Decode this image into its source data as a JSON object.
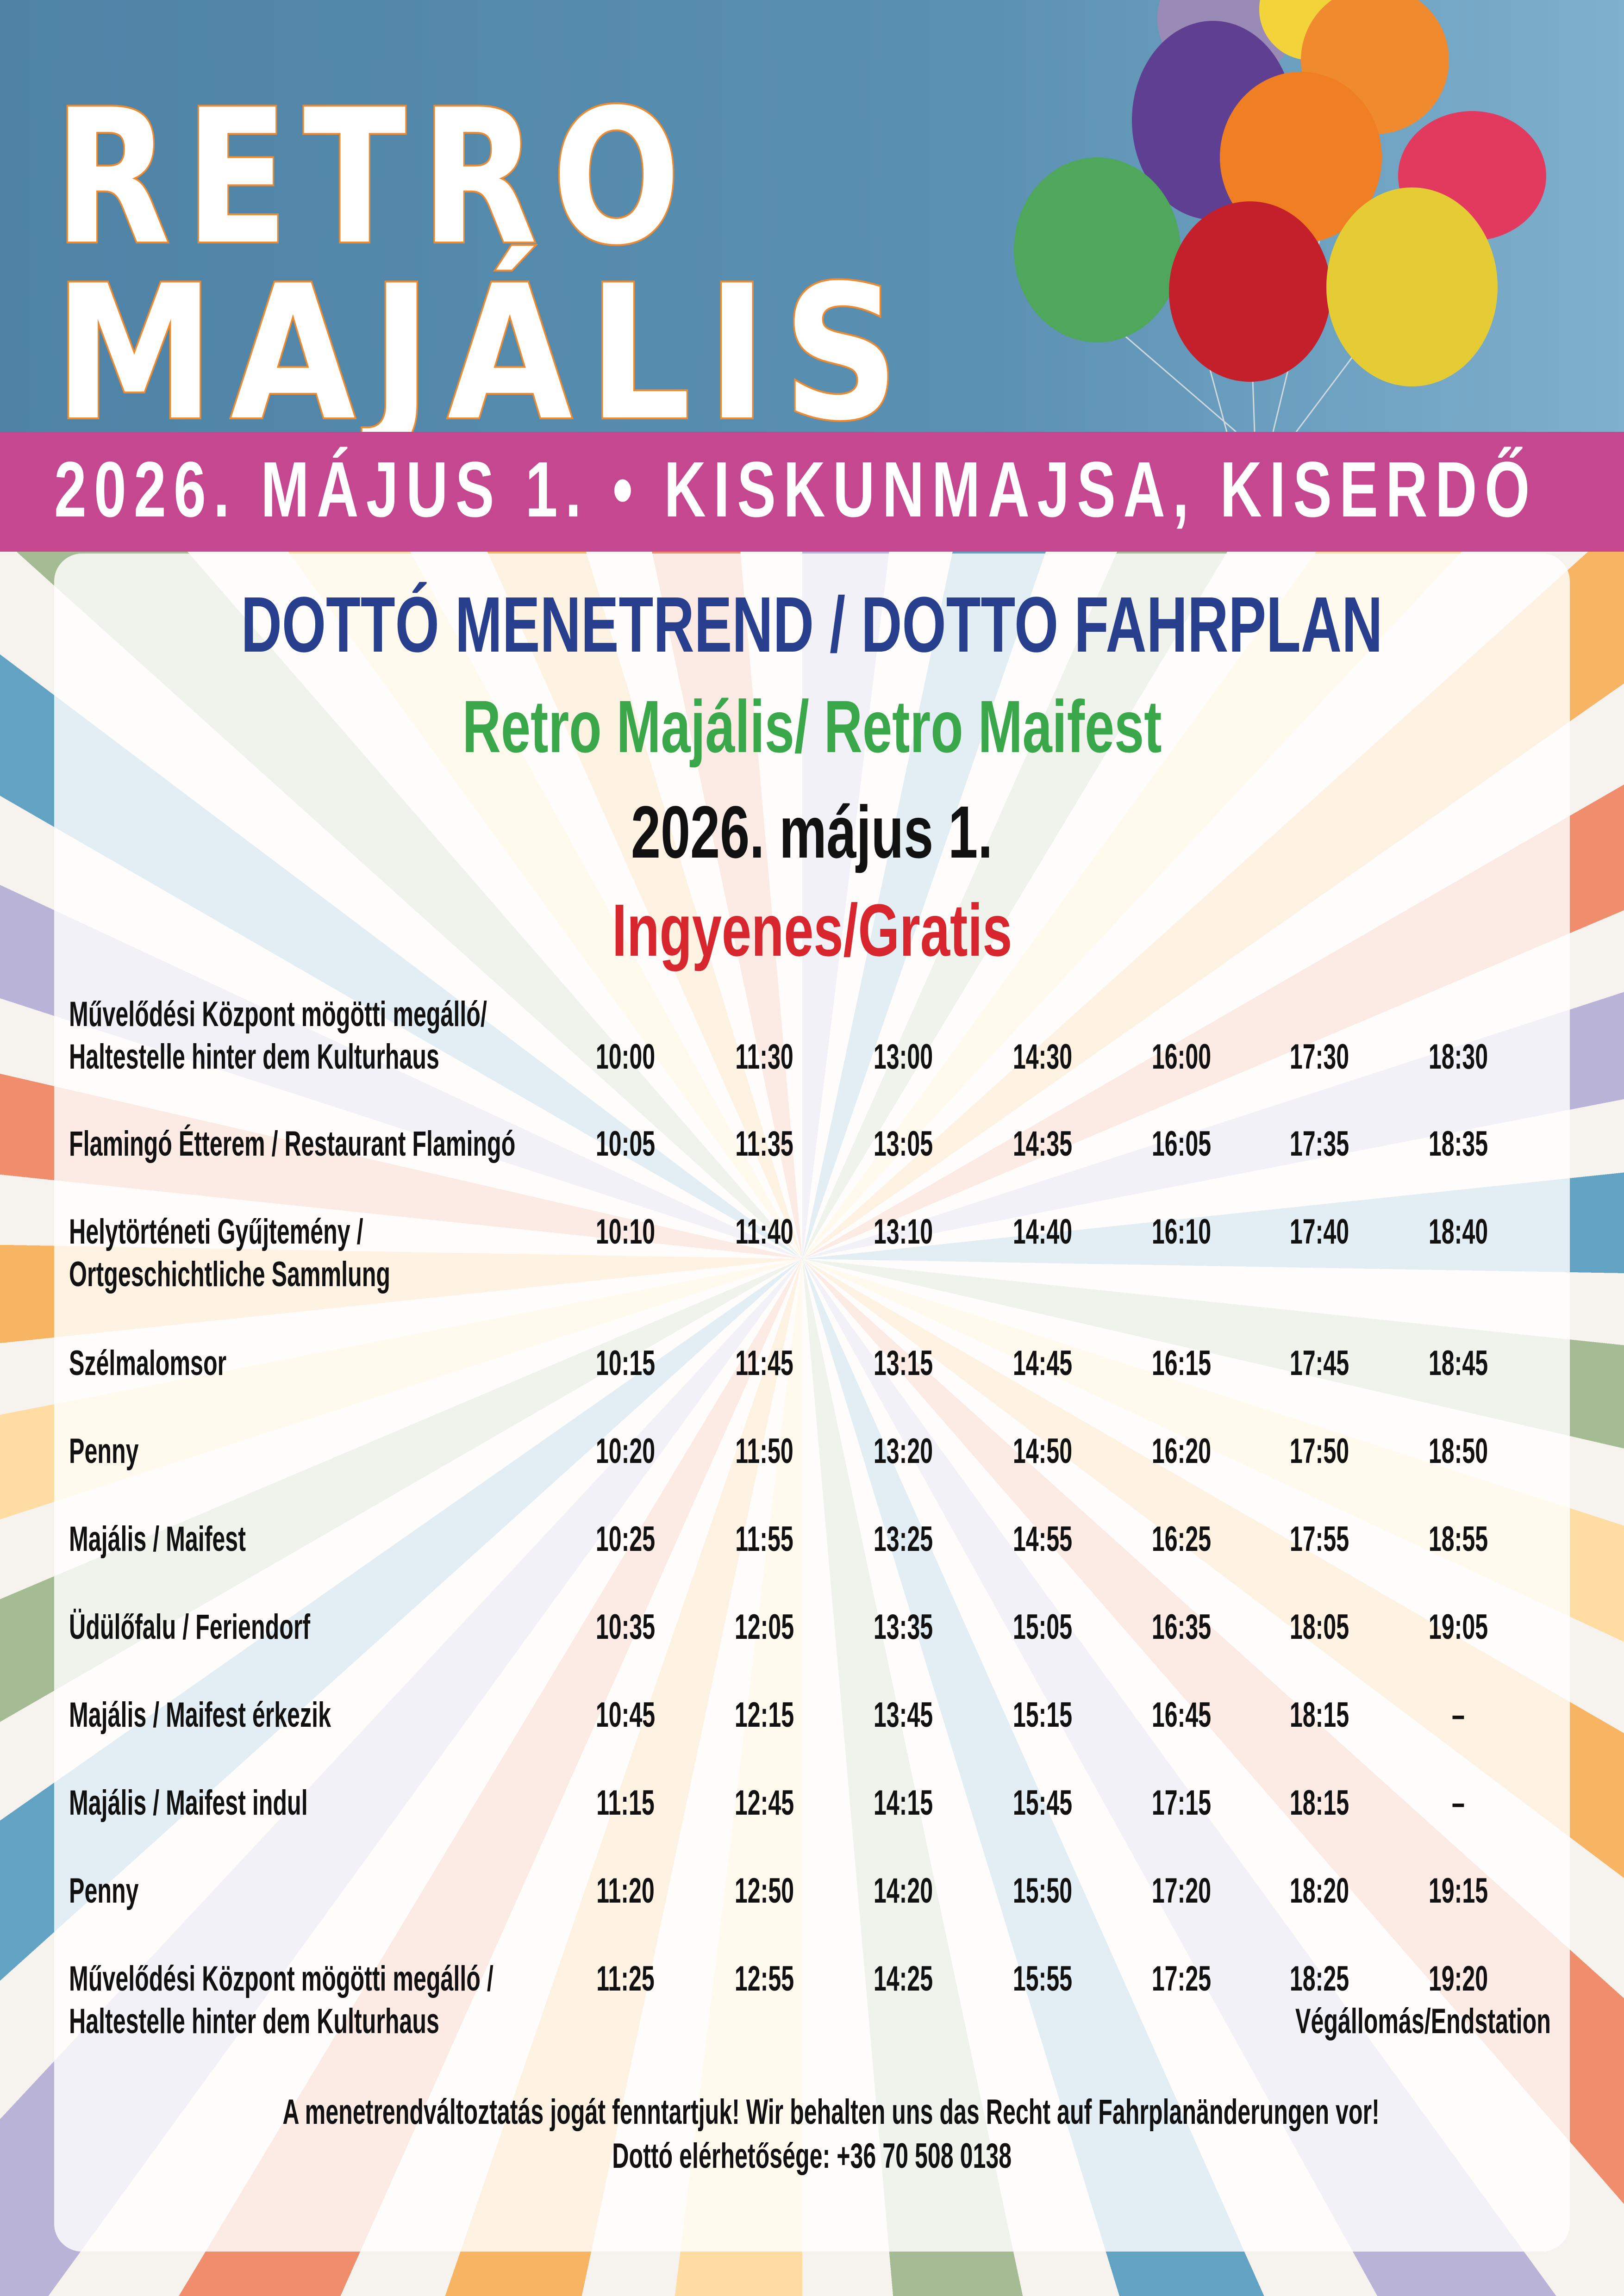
{
  "header": {
    "title_line1": "RETRO",
    "title_line2": "MAJÁLIS",
    "banner": "2026. MÁJUS 1. • KISKUNMAJSA, KISERDŐ",
    "image": "balloons"
  },
  "content": {
    "title": "DOTTÓ MENETREND / DOTTO FAHRPLAN",
    "subtitle": "Retro Majális/ Retro Maifest",
    "date": "2026. május 1.",
    "price": "Ingyenes/Gratis",
    "rows": [
      {
        "stop": [
          "Művelődési Központ mögötti megálló/",
          "Haltestelle hinter dem Kulturhaus"
        ],
        "times": [
          "10:00",
          "11:30",
          "13:00",
          "14:30",
          "16:00",
          "17:30",
          "18:30"
        ]
      },
      {
        "stop": [
          "Flamingó Étterem / Restaurant Flamingó"
        ],
        "times": [
          "10:05",
          "11:35",
          "13:05",
          "14:35",
          "16:05",
          "17:35",
          "18:35"
        ]
      },
      {
        "stop": [
          "Helytörténeti Gyűjtemény /",
          "Ortgeschichtliche Sammlung"
        ],
        "times": [
          "10:10",
          "11:40",
          "13:10",
          "14:40",
          "16:10",
          "17:40",
          "18:40"
        ]
      },
      {
        "stop": [
          "Szélmalomsor"
        ],
        "times": [
          "10:15",
          "11:45",
          "13:15",
          "14:45",
          "16:15",
          "17:45",
          "18:45"
        ]
      },
      {
        "stop": [
          "Penny"
        ],
        "times": [
          "10:20",
          "11:50",
          "13:20",
          "14:50",
          "16:20",
          "17:50",
          "18:50"
        ]
      },
      {
        "stop": [
          "Majális / Maifest"
        ],
        "times": [
          "10:25",
          "11:55",
          "13:25",
          "14:55",
          "16:25",
          "17:55",
          "18:55"
        ]
      },
      {
        "stop": [
          "Üdülőfalu / Feriendorf"
        ],
        "times": [
          "10:35",
          "12:05",
          "13:35",
          "15:05",
          "16:35",
          "18:05",
          "19:05"
        ]
      },
      {
        "stop": [
          "Majális / Maifest érkezik"
        ],
        "times": [
          "10:45",
          "12:15",
          "13:45",
          "15:15",
          "16:45",
          "18:15",
          "–"
        ]
      },
      {
        "stop": [
          "Majális / Maifest indul"
        ],
        "times": [
          "11:15",
          "12:45",
          "14:15",
          "15:45",
          "17:15",
          "18:15",
          "–"
        ]
      },
      {
        "stop": [
          "Penny"
        ],
        "times": [
          "11:20",
          "12:50",
          "14:20",
          "15:50",
          "17:20",
          "18:20",
          "19:15"
        ]
      },
      {
        "stop": [
          "Művelődési Központ mögötti megálló /",
          "Haltestelle hinter dem Kulturhaus"
        ],
        "times": [
          "11:25",
          "12:55",
          "14:25",
          "15:55",
          "17:25",
          "18:25",
          "19:20"
        ],
        "note": "Végállomás/Endstation"
      }
    ],
    "footer_note": "A menetrendváltoztatás jogát fenntartjuk! Wir behalten uns das Recht auf Fahrplanänderungen vor!",
    "contact": "Dottó elérhetősége: +36 70 508 0138"
  },
  "colors": {
    "header_blue": "#4e83a6",
    "banner_pink": "#c4478f",
    "title_blue": "#283f8e",
    "subtitle_green": "#3aa84a",
    "price_red": "#d7262e",
    "title_outline": "#f08a2e"
  }
}
